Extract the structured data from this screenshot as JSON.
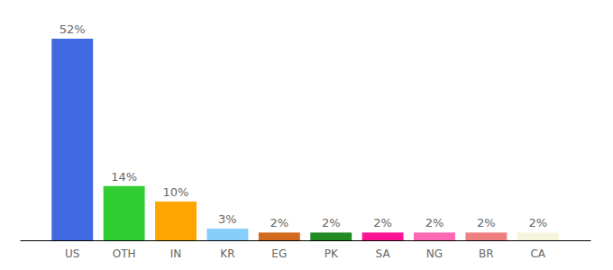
{
  "chart_data": {
    "type": "bar",
    "categories": [
      "US",
      "OTH",
      "IN",
      "KR",
      "EG",
      "PK",
      "SA",
      "NG",
      "BR",
      "CA"
    ],
    "values": [
      52,
      14,
      10,
      3,
      2,
      2,
      2,
      2,
      2,
      2
    ],
    "value_labels": [
      "52%",
      "14%",
      "10%",
      "3%",
      "2%",
      "2%",
      "2%",
      "2%",
      "2%",
      "2%"
    ],
    "colors": [
      "#4169e1",
      "#32cd32",
      "#ffa500",
      "#87cefa",
      "#d2691e",
      "#228b22",
      "#ff1493",
      "#ff69b4",
      "#f08080",
      "#f5f5dc"
    ],
    "data_labels": true,
    "tick_labels": "x",
    "grid": false
  }
}
